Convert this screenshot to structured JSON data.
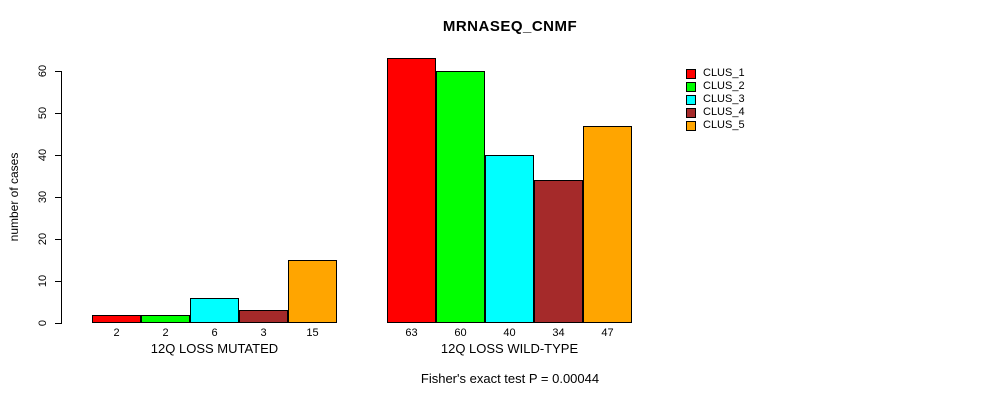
{
  "title": "MRNASEQ_CNMF",
  "footer": "Fisher's exact test P = 0.00044",
  "chart_data": {
    "type": "bar",
    "title": "MRNASEQ_CNMF",
    "xlabel": "",
    "ylabel": "number of cases",
    "ylim": [
      0,
      60
    ],
    "yticks": [
      0,
      10,
      20,
      30,
      40,
      50,
      60
    ],
    "categories": [
      "12Q LOSS MUTATED",
      "12Q LOSS WILD-TYPE"
    ],
    "series": [
      {
        "name": "CLUS_1",
        "color": "#FF0000",
        "values": [
          2,
          63
        ]
      },
      {
        "name": "CLUS_2",
        "color": "#00FF00",
        "values": [
          2,
          60
        ]
      },
      {
        "name": "CLUS_3",
        "color": "#00FFFF",
        "values": [
          6,
          40
        ]
      },
      {
        "name": "CLUS_4",
        "color": "#A52A2A",
        "values": [
          3,
          34
        ]
      },
      {
        "name": "CLUS_5",
        "color": "#FFA500",
        "values": [
          15,
          47
        ]
      }
    ],
    "legend": [
      "CLUS_1",
      "CLUS_2",
      "CLUS_3",
      "CLUS_4",
      "CLUS_5"
    ],
    "legend_position": "right-inside",
    "grid": false,
    "bar_value_labels_shown": true,
    "annotation": "Fisher's exact test P = 0.00044"
  }
}
